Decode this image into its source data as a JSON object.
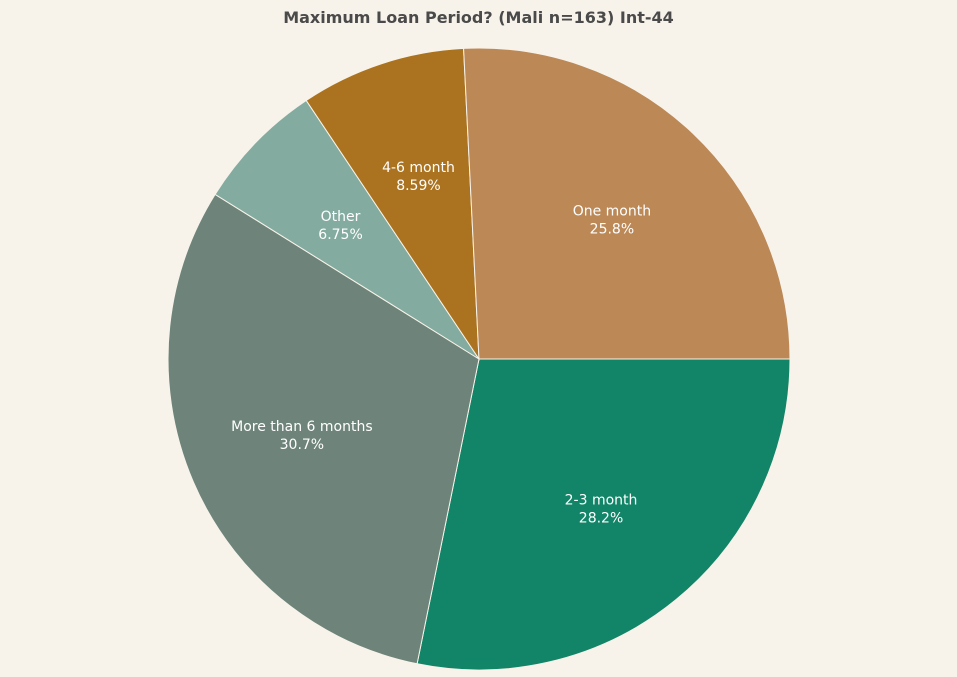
{
  "chart_data": {
    "type": "pie",
    "title": "Maximum Loan Period? (Mali n=163) Int-44",
    "slices": [
      {
        "label": "2-3 month",
        "value": 28.2,
        "display": "28.2%",
        "color": "#128467"
      },
      {
        "label": "More than 6 months",
        "value": 30.7,
        "display": "30.7%",
        "color": "#6e847a"
      },
      {
        "label": "Other",
        "value": 6.75,
        "display": "6.75%",
        "color": "#84aba0"
      },
      {
        "label": "4-6 month",
        "value": 8.59,
        "display": "8.59%",
        "color": "#ab731f"
      },
      {
        "label": "One month",
        "value": 25.8,
        "display": "25.8%",
        "color": "#bc8856"
      }
    ],
    "start": "3 o'clock, clockwise",
    "slice_border_color": "#f8f3ea",
    "label_color": "#ffffff",
    "background": "#f8f3ea"
  }
}
